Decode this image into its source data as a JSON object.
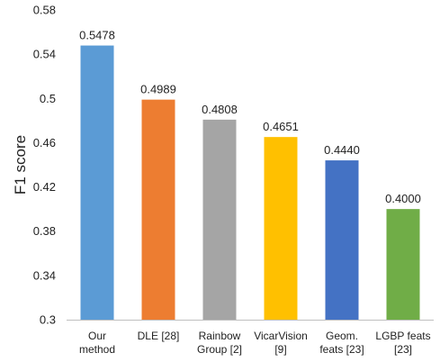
{
  "chart_data": {
    "type": "bar",
    "ylabel": "F1 score",
    "xlabel": "",
    "ylim": [
      0.3,
      0.58
    ],
    "yticks": [
      "0.3",
      "0.34",
      "0.38",
      "0.42",
      "0.46",
      "0.5",
      "0.54",
      "0.58"
    ],
    "grid": false,
    "categories": [
      [
        "Our",
        "method"
      ],
      [
        "DLE [28]"
      ],
      [
        "Rainbow",
        "Group [2]"
      ],
      [
        "VicarVision",
        "[9]"
      ],
      [
        "Geom.",
        "feats [23]"
      ],
      [
        "LGBP feats",
        "[23]"
      ]
    ],
    "values": [
      0.5478,
      0.4989,
      0.4808,
      0.4651,
      0.444,
      0.4
    ],
    "value_labels": [
      "0.5478",
      "0.4989",
      "0.4808",
      "0.4651",
      "0.4440",
      "0.4000"
    ],
    "colors": [
      "#5b9bd5",
      "#ed7d31",
      "#a5a5a5",
      "#ffc000",
      "#4472c4",
      "#70ad47"
    ]
  }
}
